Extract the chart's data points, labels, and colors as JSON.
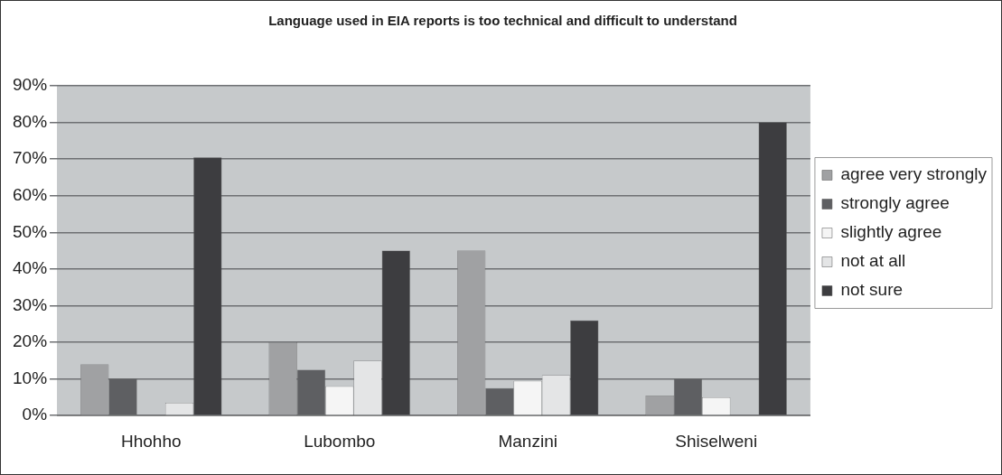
{
  "chart_data": {
    "type": "bar",
    "title": "Language used in EIA reports is too technical and difficult to understand",
    "categories": [
      "Hhohho",
      "Lubombo",
      "Manzini",
      "Shiselweni"
    ],
    "series": [
      {
        "name": "agree very strongly",
        "color": "#a0a1a3",
        "values": [
          14,
          20,
          45,
          5.5
        ]
      },
      {
        "name": "strongly agree",
        "color": "#5e5f62",
        "values": [
          10,
          12.5,
          7.5,
          10
        ]
      },
      {
        "name": "slightly agree",
        "color": "#f5f5f5",
        "values": [
          0,
          8,
          9.5,
          5
        ]
      },
      {
        "name": "not at all",
        "color": "#e4e5e6",
        "values": [
          3.5,
          15,
          11,
          0
        ]
      },
      {
        "name": "not sure",
        "color": "#3d3d40",
        "values": [
          70.5,
          45,
          26,
          80
        ]
      }
    ],
    "ylim": [
      0,
      90
    ],
    "yticks": [
      {
        "value": 0,
        "label": "0%"
      },
      {
        "value": 10,
        "label": "10%"
      },
      {
        "value": 20,
        "label": "20%"
      },
      {
        "value": 30,
        "label": "30%"
      },
      {
        "value": 40,
        "label": "40%"
      },
      {
        "value": 50,
        "label": "50%"
      },
      {
        "value": 60,
        "label": "60%"
      },
      {
        "value": 70,
        "label": "70%"
      },
      {
        "value": 80,
        "label": "80%"
      },
      {
        "value": 90,
        "label": "90%"
      }
    ],
    "grid": "y",
    "legend": "right"
  }
}
